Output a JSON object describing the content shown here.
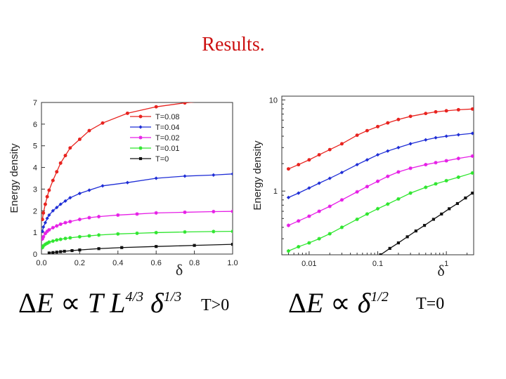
{
  "slide": {
    "title": "Results."
  },
  "formulas": {
    "left": {
      "delta": "Δ",
      "E": "E",
      "prop": "∝",
      "T": "T",
      "L": "L",
      "L_exp": "4/3",
      "d": "δ",
      "d_exp": "1/3"
    },
    "right": {
      "delta": "Δ",
      "E": "E",
      "prop": "∝",
      "d": "δ",
      "d_exp": "1/2"
    }
  },
  "conditions": {
    "left": "T>0",
    "right": "T=0"
  },
  "colors": {
    "T0.08": "#e8231f",
    "T0.04": "#1f2ed6",
    "T0.02": "#e61ee6",
    "T0.01": "#2ee62e",
    "T0": "#111111"
  },
  "chart_data": [
    {
      "type": "line",
      "xlabel": "δ",
      "ylabel": "Energy density",
      "xlim": [
        0.0,
        1.0
      ],
      "ylim": [
        0,
        7
      ],
      "xticks": [
        0.0,
        0.2,
        0.4,
        0.6,
        0.8,
        1.0
      ],
      "xtick_labels": [
        "0.0",
        "0.2",
        "0.4",
        "0.6",
        "0.8",
        "1.0"
      ],
      "yticks": [
        0,
        1,
        2,
        3,
        4,
        5,
        6,
        7
      ],
      "ytick_labels": [
        "0",
        "1",
        "2",
        "3",
        "4",
        "5",
        "6",
        "7"
      ],
      "legend_position": "top-right",
      "series": [
        {
          "name": "T=0.08",
          "color": "#e8231f",
          "x": [
            0.005,
            0.01,
            0.02,
            0.03,
            0.04,
            0.06,
            0.08,
            0.1,
            0.125,
            0.15,
            0.2,
            0.25,
            0.32,
            0.45,
            0.6,
            0.75,
            0.9,
            1.0
          ],
          "y": [
            1.6,
            1.9,
            2.3,
            2.65,
            2.95,
            3.4,
            3.8,
            4.2,
            4.55,
            4.9,
            5.3,
            5.7,
            6.05,
            6.5,
            6.8,
            6.98,
            7.1,
            7.15
          ]
        },
        {
          "name": "T=0.04",
          "color": "#1f2ed6",
          "x": [
            0.005,
            0.01,
            0.02,
            0.03,
            0.04,
            0.06,
            0.08,
            0.1,
            0.125,
            0.15,
            0.2,
            0.25,
            0.32,
            0.45,
            0.6,
            0.75,
            0.9,
            1.0
          ],
          "y": [
            1.05,
            1.25,
            1.45,
            1.65,
            1.8,
            2.0,
            2.15,
            2.3,
            2.45,
            2.6,
            2.8,
            2.95,
            3.15,
            3.3,
            3.5,
            3.6,
            3.65,
            3.7
          ]
        },
        {
          "name": "T=0.02",
          "color": "#e61ee6",
          "x": [
            0.005,
            0.01,
            0.02,
            0.03,
            0.04,
            0.06,
            0.08,
            0.1,
            0.125,
            0.15,
            0.2,
            0.25,
            0.3,
            0.4,
            0.5,
            0.6,
            0.75,
            0.9,
            1.0
          ],
          "y": [
            0.7,
            0.8,
            0.95,
            1.05,
            1.12,
            1.22,
            1.3,
            1.38,
            1.45,
            1.5,
            1.6,
            1.68,
            1.73,
            1.8,
            1.85,
            1.9,
            1.93,
            1.96,
            1.97
          ]
        },
        {
          "name": "T=0.01",
          "color": "#2ee62e",
          "x": [
            0.005,
            0.01,
            0.02,
            0.03,
            0.04,
            0.06,
            0.08,
            0.1,
            0.125,
            0.15,
            0.2,
            0.25,
            0.3,
            0.4,
            0.5,
            0.6,
            0.75,
            0.9,
            1.0
          ],
          "y": [
            0.3,
            0.38,
            0.45,
            0.5,
            0.55,
            0.6,
            0.65,
            0.68,
            0.72,
            0.75,
            0.8,
            0.84,
            0.88,
            0.93,
            0.96,
            0.99,
            1.02,
            1.04,
            1.05
          ]
        },
        {
          "name": "T=0",
          "color": "#111111",
          "x": [
            0.04,
            0.06,
            0.08,
            0.1,
            0.12,
            0.16,
            0.2,
            0.3,
            0.42,
            0.6,
            0.8,
            1.0
          ],
          "y": [
            0.05,
            0.07,
            0.09,
            0.11,
            0.13,
            0.16,
            0.19,
            0.25,
            0.3,
            0.35,
            0.4,
            0.45
          ]
        }
      ]
    },
    {
      "type": "line",
      "xlabel": "δ",
      "ylabel": "Energy density",
      "xscale": "log",
      "yscale": "log",
      "xlim": [
        0.004,
        2.5
      ],
      "ylim": [
        0.2,
        11
      ],
      "xticks": [
        0.01,
        0.1,
        1
      ],
      "xtick_labels": [
        "0.01",
        "0.1",
        "1"
      ],
      "yticks": [
        1,
        10
      ],
      "ytick_labels": [
        "1",
        "10"
      ],
      "series": [
        {
          "name": "T=0.08",
          "color": "#e8231f",
          "x": [
            0.005,
            0.007,
            0.01,
            0.014,
            0.02,
            0.03,
            0.05,
            0.07,
            0.1,
            0.14,
            0.2,
            0.3,
            0.5,
            0.7,
            1.0,
            1.5,
            2.4
          ],
          "y": [
            1.75,
            1.95,
            2.2,
            2.5,
            2.85,
            3.3,
            4.1,
            4.6,
            5.1,
            5.6,
            6.1,
            6.6,
            7.1,
            7.4,
            7.6,
            7.8,
            7.95
          ]
        },
        {
          "name": "T=0.04",
          "color": "#1f2ed6",
          "x": [
            0.005,
            0.007,
            0.01,
            0.014,
            0.02,
            0.03,
            0.05,
            0.07,
            0.1,
            0.14,
            0.2,
            0.3,
            0.5,
            0.7,
            1.0,
            1.5,
            2.4
          ],
          "y": [
            0.85,
            0.95,
            1.08,
            1.22,
            1.38,
            1.6,
            1.95,
            2.2,
            2.5,
            2.75,
            3.0,
            3.3,
            3.65,
            3.85,
            4.0,
            4.15,
            4.3
          ]
        },
        {
          "name": "T=0.02",
          "color": "#e61ee6",
          "x": [
            0.005,
            0.007,
            0.01,
            0.014,
            0.02,
            0.03,
            0.05,
            0.07,
            0.1,
            0.14,
            0.2,
            0.3,
            0.5,
            0.7,
            1.0,
            1.5,
            2.4
          ],
          "y": [
            0.42,
            0.47,
            0.53,
            0.6,
            0.68,
            0.8,
            0.98,
            1.12,
            1.28,
            1.45,
            1.62,
            1.78,
            1.95,
            2.05,
            2.15,
            2.28,
            2.42
          ]
        },
        {
          "name": "T=0.01",
          "color": "#2ee62e",
          "x": [
            0.005,
            0.007,
            0.01,
            0.014,
            0.02,
            0.03,
            0.05,
            0.07,
            0.1,
            0.14,
            0.2,
            0.3,
            0.5,
            0.7,
            1.0,
            1.5,
            2.4
          ],
          "y": [
            0.22,
            0.245,
            0.27,
            0.3,
            0.34,
            0.4,
            0.49,
            0.56,
            0.64,
            0.72,
            0.82,
            0.95,
            1.1,
            1.2,
            1.3,
            1.42,
            1.58
          ]
        },
        {
          "name": "T=0",
          "color": "#111111",
          "x": [
            0.11,
            0.15,
            0.2,
            0.27,
            0.36,
            0.48,
            0.65,
            0.85,
            1.1,
            1.45,
            1.9,
            2.4
          ],
          "y": [
            0.2,
            0.235,
            0.27,
            0.315,
            0.365,
            0.42,
            0.49,
            0.56,
            0.64,
            0.73,
            0.84,
            0.95
          ]
        }
      ]
    }
  ]
}
